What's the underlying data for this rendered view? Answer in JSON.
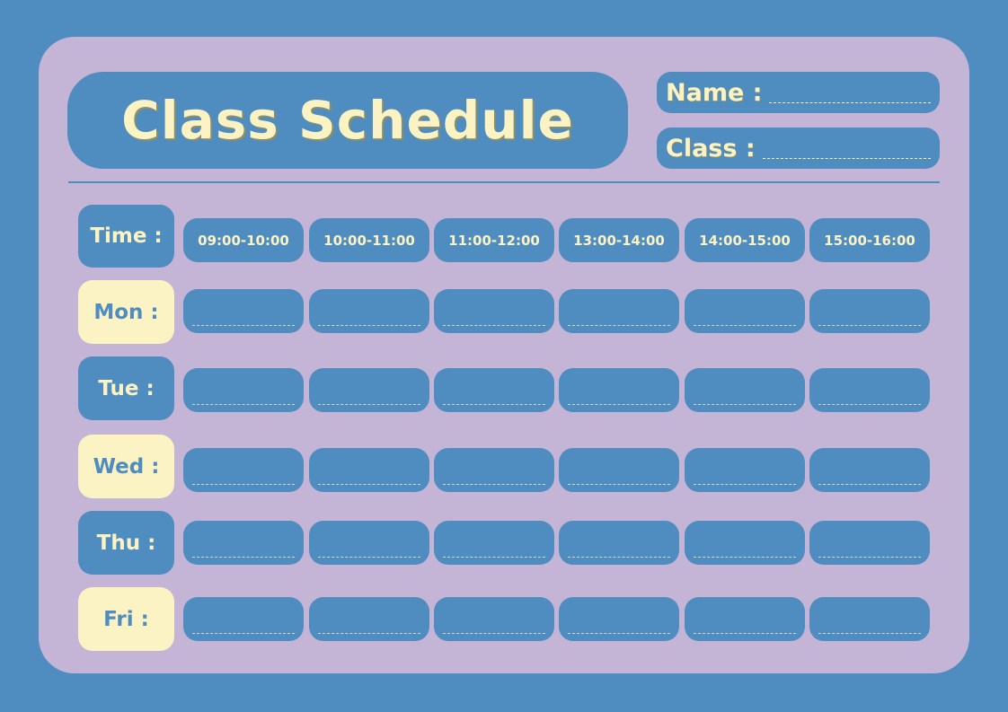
{
  "title": "Class Schedule",
  "fields": {
    "name_label": "Name :",
    "class_label": "Class :"
  },
  "time_label": "Time :",
  "time_slots": [
    "09:00-10:00",
    "10:00-11:00",
    "11:00-12:00",
    "13:00-14:00",
    "14:00-15:00",
    "15:00-16:00"
  ],
  "days": [
    {
      "label": "Mon :",
      "style": "cream"
    },
    {
      "label": "Tue :",
      "style": "blue"
    },
    {
      "label": "Wed :",
      "style": "cream"
    },
    {
      "label": "Thu :",
      "style": "blue"
    },
    {
      "label": "Fri :",
      "style": "cream"
    }
  ],
  "colors": {
    "background": "#4f8cbf",
    "card": "#c4b4d6",
    "cream": "#fcf3c4"
  }
}
